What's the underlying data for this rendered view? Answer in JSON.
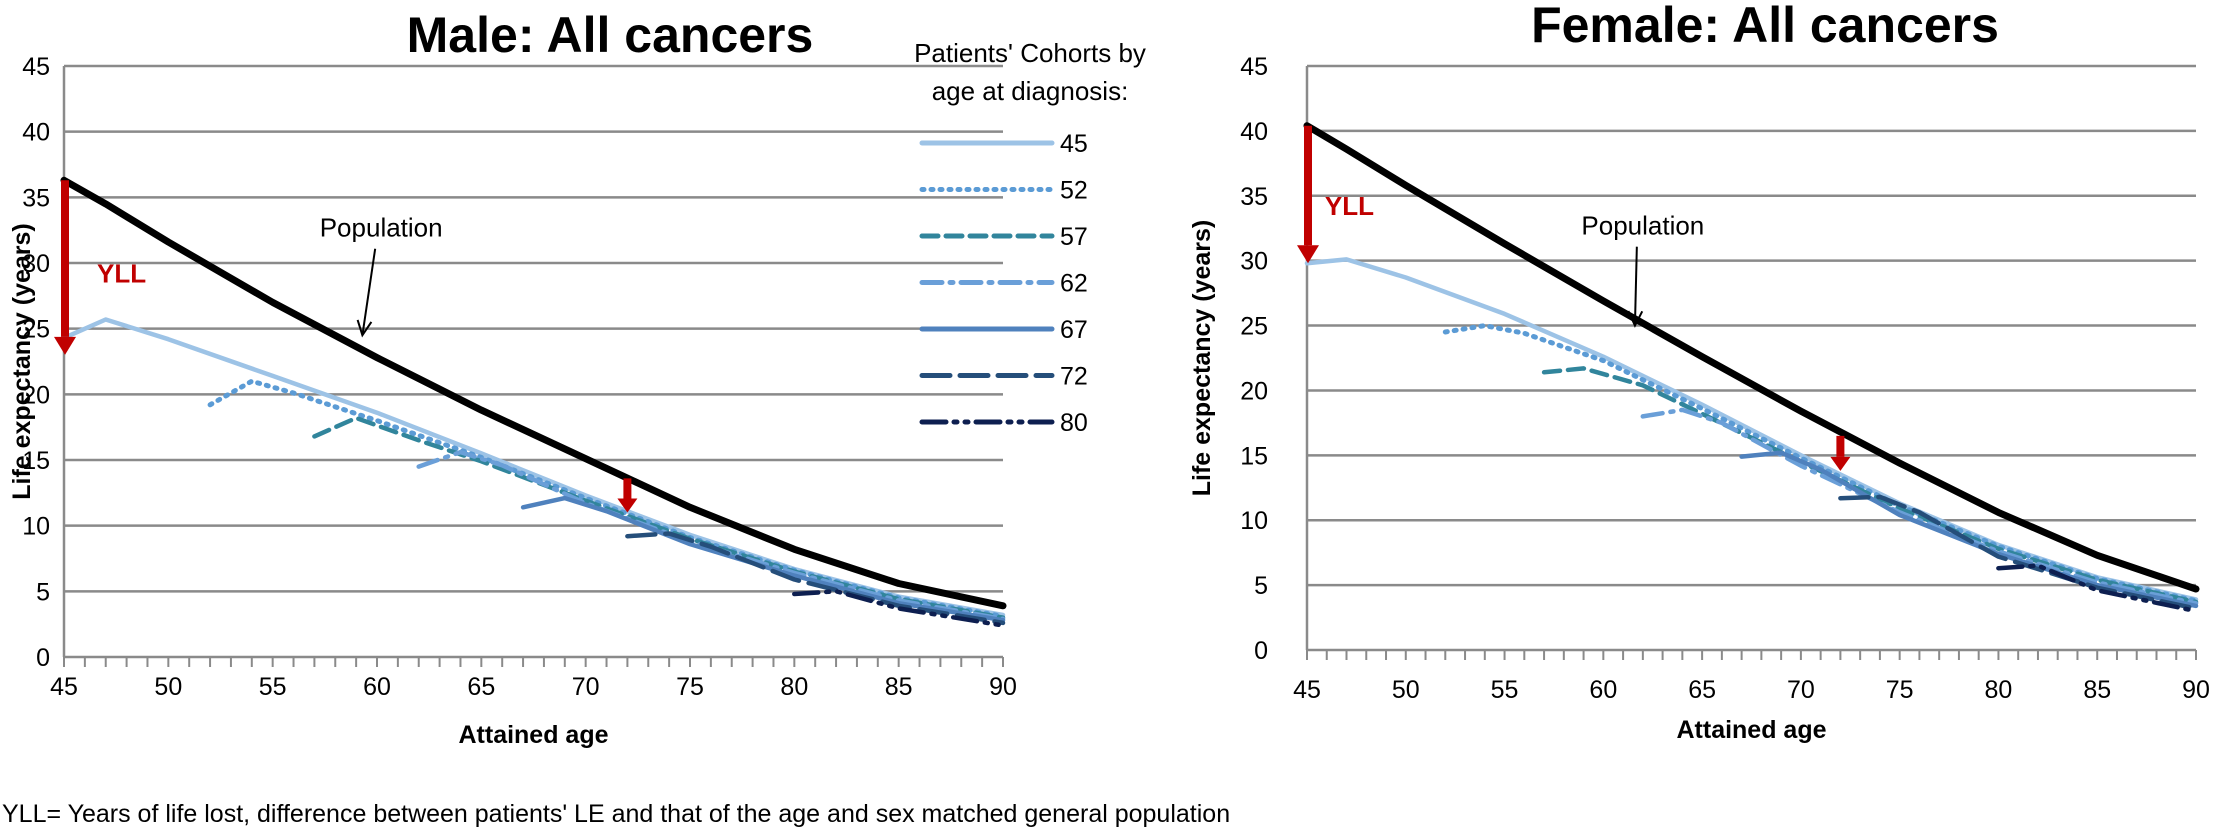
{
  "footnote": "YLL= Years of life lost, difference between patients' LE and that of the age and sex matched general population",
  "legend": {
    "title_line1": "Patients' Cohorts by",
    "title_line2": "age at diagnosis:",
    "entries": [
      {
        "label": "45",
        "color": "#9dc3e6",
        "dash": "solid"
      },
      {
        "label": "52",
        "color": "#5b9bd5",
        "dash": "dot"
      },
      {
        "label": "57",
        "color": "#31859c",
        "dash": "dash"
      },
      {
        "label": "62",
        "color": "#6a9fd8",
        "dash": "dashdot"
      },
      {
        "label": "67",
        "color": "#4f81bd",
        "dash": "solid"
      },
      {
        "label": "72",
        "color": "#254e7a",
        "dash": "longdash"
      },
      {
        "label": "80",
        "color": "#0d1f50",
        "dash": "longdashdot"
      }
    ]
  },
  "chart_data": [
    {
      "type": "line",
      "title": "Male: All cancers",
      "xlabel": "Attained age",
      "ylabel": "Life expectancy (years)",
      "xlim": [
        45,
        90
      ],
      "ylim": [
        0,
        45
      ],
      "xticks": [
        45,
        50,
        55,
        60,
        65,
        70,
        75,
        80,
        85,
        90
      ],
      "yticks": [
        0,
        5,
        10,
        15,
        20,
        25,
        30,
        35,
        40,
        45
      ],
      "grid": "horizontal",
      "annotations": [
        {
          "text": "Population",
          "x": 60.2,
          "y": 32.0,
          "arrow_to": [
            59.3,
            24.5
          ]
        },
        {
          "text": "YLL",
          "x": 46.2,
          "y": 28.5,
          "kind": "arrow",
          "from": [
            45,
            36.3
          ],
          "to": [
            45,
            23.0
          ]
        },
        {
          "text": "",
          "kind": "arrow",
          "from": [
            72,
            13.6
          ],
          "to": [
            72,
            11.0
          ]
        }
      ],
      "series": [
        {
          "name": "Population",
          "color": "#000000",
          "dash": "solid",
          "x": [
            45,
            47,
            50,
            55,
            60,
            65,
            70,
            75,
            80,
            85,
            90
          ],
          "y": [
            36.3,
            34.5,
            31.6,
            27.0,
            22.8,
            18.8,
            15.1,
            11.4,
            8.2,
            5.6,
            3.9
          ]
        },
        {
          "name": "45",
          "color": "#9dc3e6",
          "dash": "solid",
          "x": [
            45,
            47,
            50,
            55,
            60,
            65,
            70,
            75,
            80,
            85,
            90
          ],
          "y": [
            24.3,
            25.7,
            24.2,
            21.4,
            18.6,
            15.5,
            12.3,
            9.3,
            6.7,
            4.6,
            3.2
          ]
        },
        {
          "name": "52",
          "color": "#5b9bd5",
          "dash": "dot",
          "x": [
            52,
            54,
            56,
            60,
            65,
            70,
            75,
            80,
            85,
            90
          ],
          "y": [
            19.2,
            21.0,
            20.1,
            18.0,
            15.2,
            12.1,
            9.1,
            6.6,
            4.5,
            3.1
          ]
        },
        {
          "name": "57",
          "color": "#31859c",
          "dash": "dash",
          "x": [
            57,
            59,
            62,
            65,
            70,
            75,
            80,
            85,
            90
          ],
          "y": [
            16.8,
            18.2,
            16.5,
            14.9,
            11.9,
            9.0,
            6.5,
            4.4,
            3.0
          ]
        },
        {
          "name": "62",
          "color": "#6a9fd8",
          "dash": "dashdot",
          "x": [
            62,
            64,
            66,
            70,
            75,
            80,
            85,
            90
          ],
          "y": [
            14.5,
            15.6,
            14.6,
            11.7,
            8.8,
            6.4,
            4.3,
            2.9
          ]
        },
        {
          "name": "67",
          "color": "#4f81bd",
          "dash": "solid",
          "x": [
            67,
            69,
            71,
            75,
            80,
            85,
            90
          ],
          "y": [
            11.4,
            12.1,
            11.1,
            8.6,
            6.2,
            4.1,
            2.8
          ]
        },
        {
          "name": "72",
          "color": "#254e7a",
          "dash": "longdash",
          "x": [
            72,
            74,
            76,
            80,
            85,
            90
          ],
          "y": [
            9.2,
            9.4,
            8.4,
            5.9,
            3.9,
            2.6
          ]
        },
        {
          "name": "80",
          "color": "#0d1f50",
          "dash": "longdashdot",
          "x": [
            80,
            82,
            85,
            90
          ],
          "y": [
            4.8,
            5.0,
            3.7,
            2.4
          ]
        }
      ]
    },
    {
      "type": "line",
      "title": "Female: All cancers",
      "xlabel": "Attained age",
      "ylabel": "Life expectancy (years)",
      "xlim": [
        45,
        90
      ],
      "ylim": [
        0,
        45
      ],
      "xticks": [
        45,
        50,
        55,
        60,
        65,
        70,
        75,
        80,
        85,
        90
      ],
      "yticks": [
        0,
        5,
        10,
        15,
        20,
        25,
        30,
        35,
        40,
        45
      ],
      "grid": "horizontal",
      "annotations": [
        {
          "text": "Population",
          "x": 62.0,
          "y": 32.0,
          "arrow_to": [
            61.6,
            25.0
          ]
        },
        {
          "text": "YLL",
          "x": 45.5,
          "y": 33.5,
          "kind": "arrow",
          "from": [
            45,
            40.4
          ],
          "to": [
            45,
            29.8
          ]
        },
        {
          "text": "",
          "kind": "arrow",
          "from": [
            72,
            16.5
          ],
          "to": [
            72,
            13.8
          ]
        }
      ],
      "series": [
        {
          "name": "Population",
          "color": "#000000",
          "dash": "solid",
          "x": [
            45,
            47,
            50,
            55,
            60,
            65,
            70,
            75,
            80,
            85,
            90
          ],
          "y": [
            40.4,
            38.6,
            35.8,
            31.3,
            26.9,
            22.6,
            18.4,
            14.4,
            10.6,
            7.3,
            4.7
          ]
        },
        {
          "name": "45",
          "color": "#9dc3e6",
          "dash": "solid",
          "x": [
            45,
            47,
            50,
            55,
            60,
            65,
            70,
            75,
            80,
            85,
            90
          ],
          "y": [
            29.8,
            30.1,
            28.7,
            25.9,
            22.6,
            18.9,
            15.0,
            11.3,
            8.1,
            5.6,
            3.9
          ]
        },
        {
          "name": "52",
          "color": "#5b9bd5",
          "dash": "dot",
          "x": [
            52,
            54,
            56,
            60,
            65,
            70,
            75,
            80,
            85,
            90
          ],
          "y": [
            24.5,
            25.0,
            24.4,
            22.3,
            18.6,
            14.8,
            11.1,
            8.0,
            5.5,
            3.8
          ]
        },
        {
          "name": "57",
          "color": "#31859c",
          "dash": "dash",
          "x": [
            57,
            59,
            62,
            65,
            70,
            75,
            80,
            85,
            90
          ],
          "y": [
            21.4,
            21.7,
            20.4,
            18.2,
            14.5,
            10.9,
            7.8,
            5.4,
            3.7
          ]
        },
        {
          "name": "62",
          "color": "#6a9fd8",
          "dash": "dashdot",
          "x": [
            62,
            64,
            66,
            70,
            75,
            80,
            85,
            90
          ],
          "y": [
            18.0,
            18.5,
            17.5,
            14.2,
            10.6,
            7.6,
            5.2,
            3.6
          ]
        },
        {
          "name": "67",
          "color": "#4f81bd",
          "dash": "solid",
          "x": [
            67,
            69,
            71,
            75,
            80,
            85,
            90
          ],
          "y": [
            14.9,
            15.2,
            13.9,
            10.4,
            7.4,
            5.0,
            3.4
          ]
        },
        {
          "name": "72",
          "color": "#254e7a",
          "dash": "longdash",
          "x": [
            72,
            74,
            76,
            80,
            85,
            90
          ],
          "y": [
            11.7,
            11.8,
            10.6,
            7.2,
            4.8,
            3.2
          ]
        },
        {
          "name": "80",
          "color": "#0d1f50",
          "dash": "longdashdot",
          "x": [
            80,
            82,
            85,
            90
          ],
          "y": [
            6.3,
            6.5,
            4.6,
            3.0
          ]
        }
      ]
    }
  ]
}
